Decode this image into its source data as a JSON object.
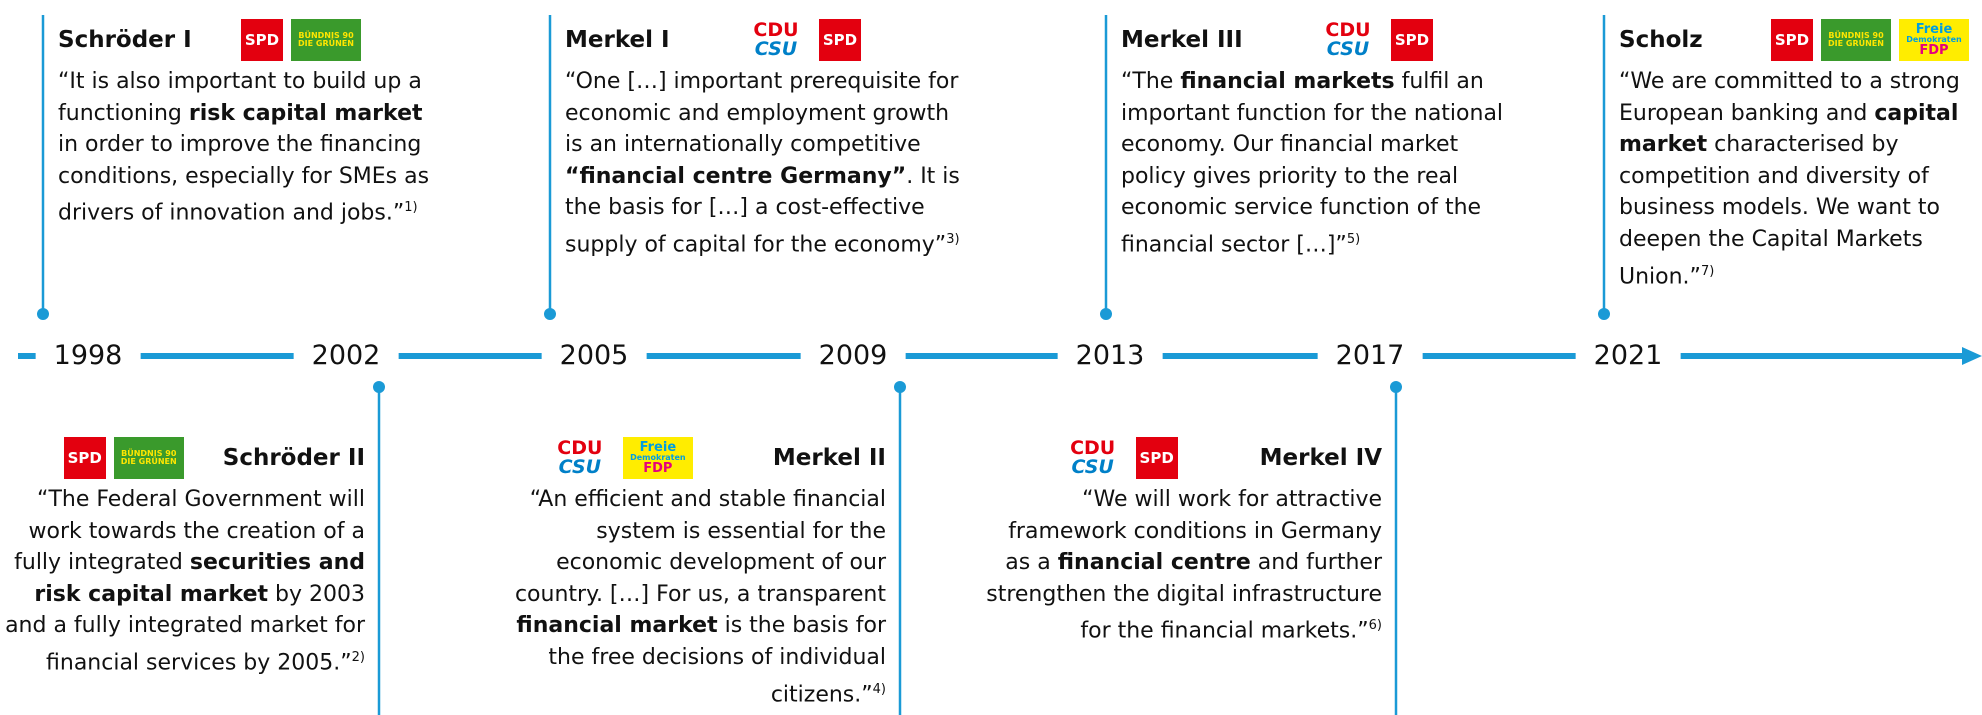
{
  "years": [
    1998,
    2002,
    2005,
    2009,
    2013,
    2017,
    2021
  ],
  "line_color": "#1a9ad6",
  "governments": [
    {
      "name": "Schröder I",
      "parties": [
        {
          "fill": "#e3000f",
          "lines": [
            {
              "text": "SPD",
              "color": "#ffffff"
            }
          ]
        },
        {
          "fill": "#3a9a2c",
          "lines": [
            {
              "text": "BÜNDNIS 90",
              "color": "#ffe600"
            },
            {
              "text": "DIE GRÜNEN",
              "color": "#ffe600"
            }
          ]
        }
      ],
      "quote": [
        {
          "text": "“It is also important to build up a functioning ",
          "bold": false
        },
        {
          "text": "risk capital market",
          "bold": true
        },
        {
          "text": " in order to improve the financing conditions, especially for SMEs as drivers of innovation and jobs.”",
          "bold": false
        }
      ],
      "note": "1)"
    },
    {
      "name": "Schröder II",
      "parties": [
        {
          "fill": "#e3000f",
          "lines": [
            {
              "text": "SPD",
              "color": "#ffffff"
            }
          ]
        },
        {
          "fill": "#3a9a2c",
          "lines": [
            {
              "text": "BÜNDNIS 90",
              "color": "#ffe600"
            },
            {
              "text": "DIE GRÜNEN",
              "color": "#ffe600"
            }
          ]
        }
      ],
      "quote": [
        {
          "text": "“The Federal Government will work towards the creation of a fully integrated ",
          "bold": false
        },
        {
          "text": "securities and risk capital market",
          "bold": true
        },
        {
          "text": " by 2003 and a fully integrated market for financial services by 2005.”",
          "bold": false
        }
      ],
      "note": "2)"
    },
    {
      "name": "Merkel I",
      "parties": [
        {
          "fill": "#ffffff",
          "lines": [
            {
              "text": "CDU",
              "color": "#e3000f"
            },
            {
              "text": "CSU",
              "color": "#0080c8"
            }
          ]
        },
        {
          "fill": "#e3000f",
          "lines": [
            {
              "text": "SPD",
              "color": "#ffffff"
            }
          ]
        }
      ],
      "quote": [
        {
          "text": "“One […] important prerequisite for economic and employment growth is an internationally competitive ",
          "bold": false
        },
        {
          "text": "“financial centre Germany”",
          "bold": true
        },
        {
          "text": ". It is the basis for […] a cost-effective supply of capital for the economy”",
          "bold": false
        }
      ],
      "note": "3)"
    },
    {
      "name": "Merkel II",
      "parties": [
        {
          "fill": "#ffffff",
          "lines": [
            {
              "text": "CDU",
              "color": "#e3000f"
            },
            {
              "text": "CSU",
              "color": "#0080c8"
            }
          ]
        },
        {
          "fill": "#ffed00",
          "lines": [
            {
              "text": "Freie",
              "color": "#009ee0"
            },
            {
              "text": "Demokraten",
              "color": "#009ee0"
            },
            {
              "text": "FDP",
              "color": "#e5007d"
            }
          ]
        }
      ],
      "quote": [
        {
          "text": "“An efficient and stable financial system is essential for the economic development of our country. […] For us, a transparent ",
          "bold": false
        },
        {
          "text": "financial market",
          "bold": true
        },
        {
          "text": " is the basis for the free decisions of individual citizens.”",
          "bold": false
        }
      ],
      "note": "4)"
    },
    {
      "name": "Merkel III",
      "parties": [
        {
          "fill": "#ffffff",
          "lines": [
            {
              "text": "CDU",
              "color": "#e3000f"
            },
            {
              "text": "CSU",
              "color": "#0080c8"
            }
          ]
        },
        {
          "fill": "#e3000f",
          "lines": [
            {
              "text": "SPD",
              "color": "#ffffff"
            }
          ]
        }
      ],
      "quote": [
        {
          "text": "“The ",
          "bold": false
        },
        {
          "text": "financial markets",
          "bold": true
        },
        {
          "text": " fulfil an important function for the national economy. Our financial market policy gives priority to the real economic service function of the financial sector […]”",
          "bold": false
        }
      ],
      "note": "5)"
    },
    {
      "name": "Merkel IV",
      "parties": [
        {
          "fill": "#ffffff",
          "lines": [
            {
              "text": "CDU",
              "color": "#e3000f"
            },
            {
              "text": "CSU",
              "color": "#0080c8"
            }
          ]
        },
        {
          "fill": "#e3000f",
          "lines": [
            {
              "text": "SPD",
              "color": "#ffffff"
            }
          ]
        }
      ],
      "quote": [
        {
          "text": "“We will work for attractive framework conditions in Germany as a ",
          "bold": false
        },
        {
          "text": "financial centre",
          "bold": true
        },
        {
          "text": " and further strengthen the digital infrastructure for the financial markets.”",
          "bold": false
        }
      ],
      "note": "6)"
    },
    {
      "name": "Scholz",
      "parties": [
        {
          "fill": "#e3000f",
          "lines": [
            {
              "text": "SPD",
              "color": "#ffffff"
            }
          ]
        },
        {
          "fill": "#3a9a2c",
          "lines": [
            {
              "text": "BÜNDNIS 90",
              "color": "#ffe600"
            },
            {
              "text": "DIE GRÜNEN",
              "color": "#ffe600"
            }
          ]
        },
        {
          "fill": "#ffed00",
          "lines": [
            {
              "text": "Freie",
              "color": "#009ee0"
            },
            {
              "text": "Demokraten",
              "color": "#009ee0"
            },
            {
              "text": "FDP",
              "color": "#e5007d"
            }
          ]
        }
      ],
      "quote": [
        {
          "text": "“We are committed to a strong European banking and ",
          "bold": false
        },
        {
          "text": "capital market",
          "bold": true
        },
        {
          "text": " characterised by competition and diversity of business models. We want to deepen the Capital Markets Union.”",
          "bold": false
        }
      ],
      "note": "7)"
    }
  ]
}
